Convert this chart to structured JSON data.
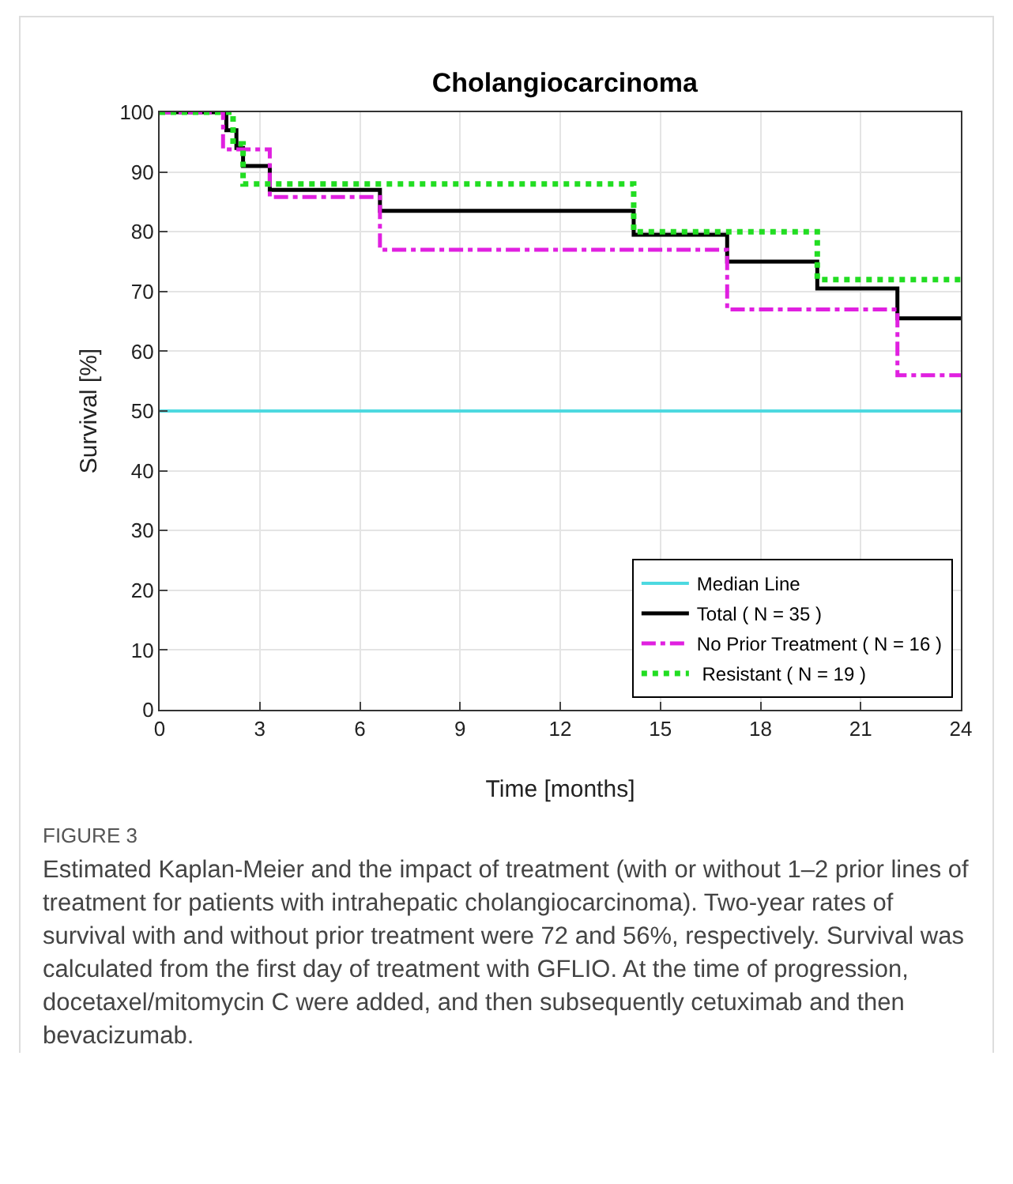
{
  "chart_data": {
    "type": "step",
    "title": "Cholangiocarcinoma",
    "xlabel": "Time [months]",
    "ylabel": "Survival [%]",
    "xlim": [
      0,
      24
    ],
    "xticks": [
      0,
      3,
      6,
      9,
      12,
      15,
      18,
      21,
      24
    ],
    "ylim": [
      0,
      100
    ],
    "yticks": [
      0,
      10,
      20,
      30,
      40,
      50,
      60,
      70,
      80,
      90,
      100
    ],
    "grid": true,
    "legend": "bottom right",
    "marker": "none",
    "ref_lines": [
      {
        "axis": "y",
        "value": 50,
        "label": "Median Line",
        "color": "#4dd9e0",
        "line_style": "solid"
      }
    ],
    "series": [
      {
        "name": "Total ( N = 35 )",
        "color": "#000000",
        "line_style": "solid",
        "x": [
          0,
          2.0,
          2.3,
          2.5,
          3.3,
          6.6,
          14.2,
          17.0,
          19.7,
          22.1,
          24
        ],
        "values": [
          100,
          97,
          94,
          91,
          87,
          83.5,
          79.5,
          75,
          70.5,
          65.5,
          65.5
        ]
      },
      {
        "name": "No Prior Treatment ( N = 16 )",
        "color": "#e020e0",
        "line_style": "dashed",
        "x": [
          0,
          1.9,
          3.3,
          6.6,
          17.0,
          22.1,
          24
        ],
        "values": [
          100,
          93.8,
          85.8,
          77,
          67,
          56,
          56
        ]
      },
      {
        "name": " Resistant ( N = 19 )",
        "color": "#22dd22",
        "line_style": "dotted",
        "x": [
          0,
          2.2,
          2.5,
          14.2,
          19.7,
          24
        ],
        "values": [
          100,
          94.7,
          88,
          80,
          72,
          72
        ]
      }
    ],
    "annotations": [
      "FIGURE 3",
      "Estimated Kaplan-Meier and the impact of treatment (with or without 1–2 prior lines of treatment for patients with intrahepatic cholangiocarcinoma). Two-year rates of survival with and without prior treatment were 72 and 56%, respectively. Survival was calculated from the first day of treatment with GFLIO. At the time of progression, docetaxel/mitomycin C were added, and then subsequently cetuximab and then bevacizumab."
    ]
  }
}
